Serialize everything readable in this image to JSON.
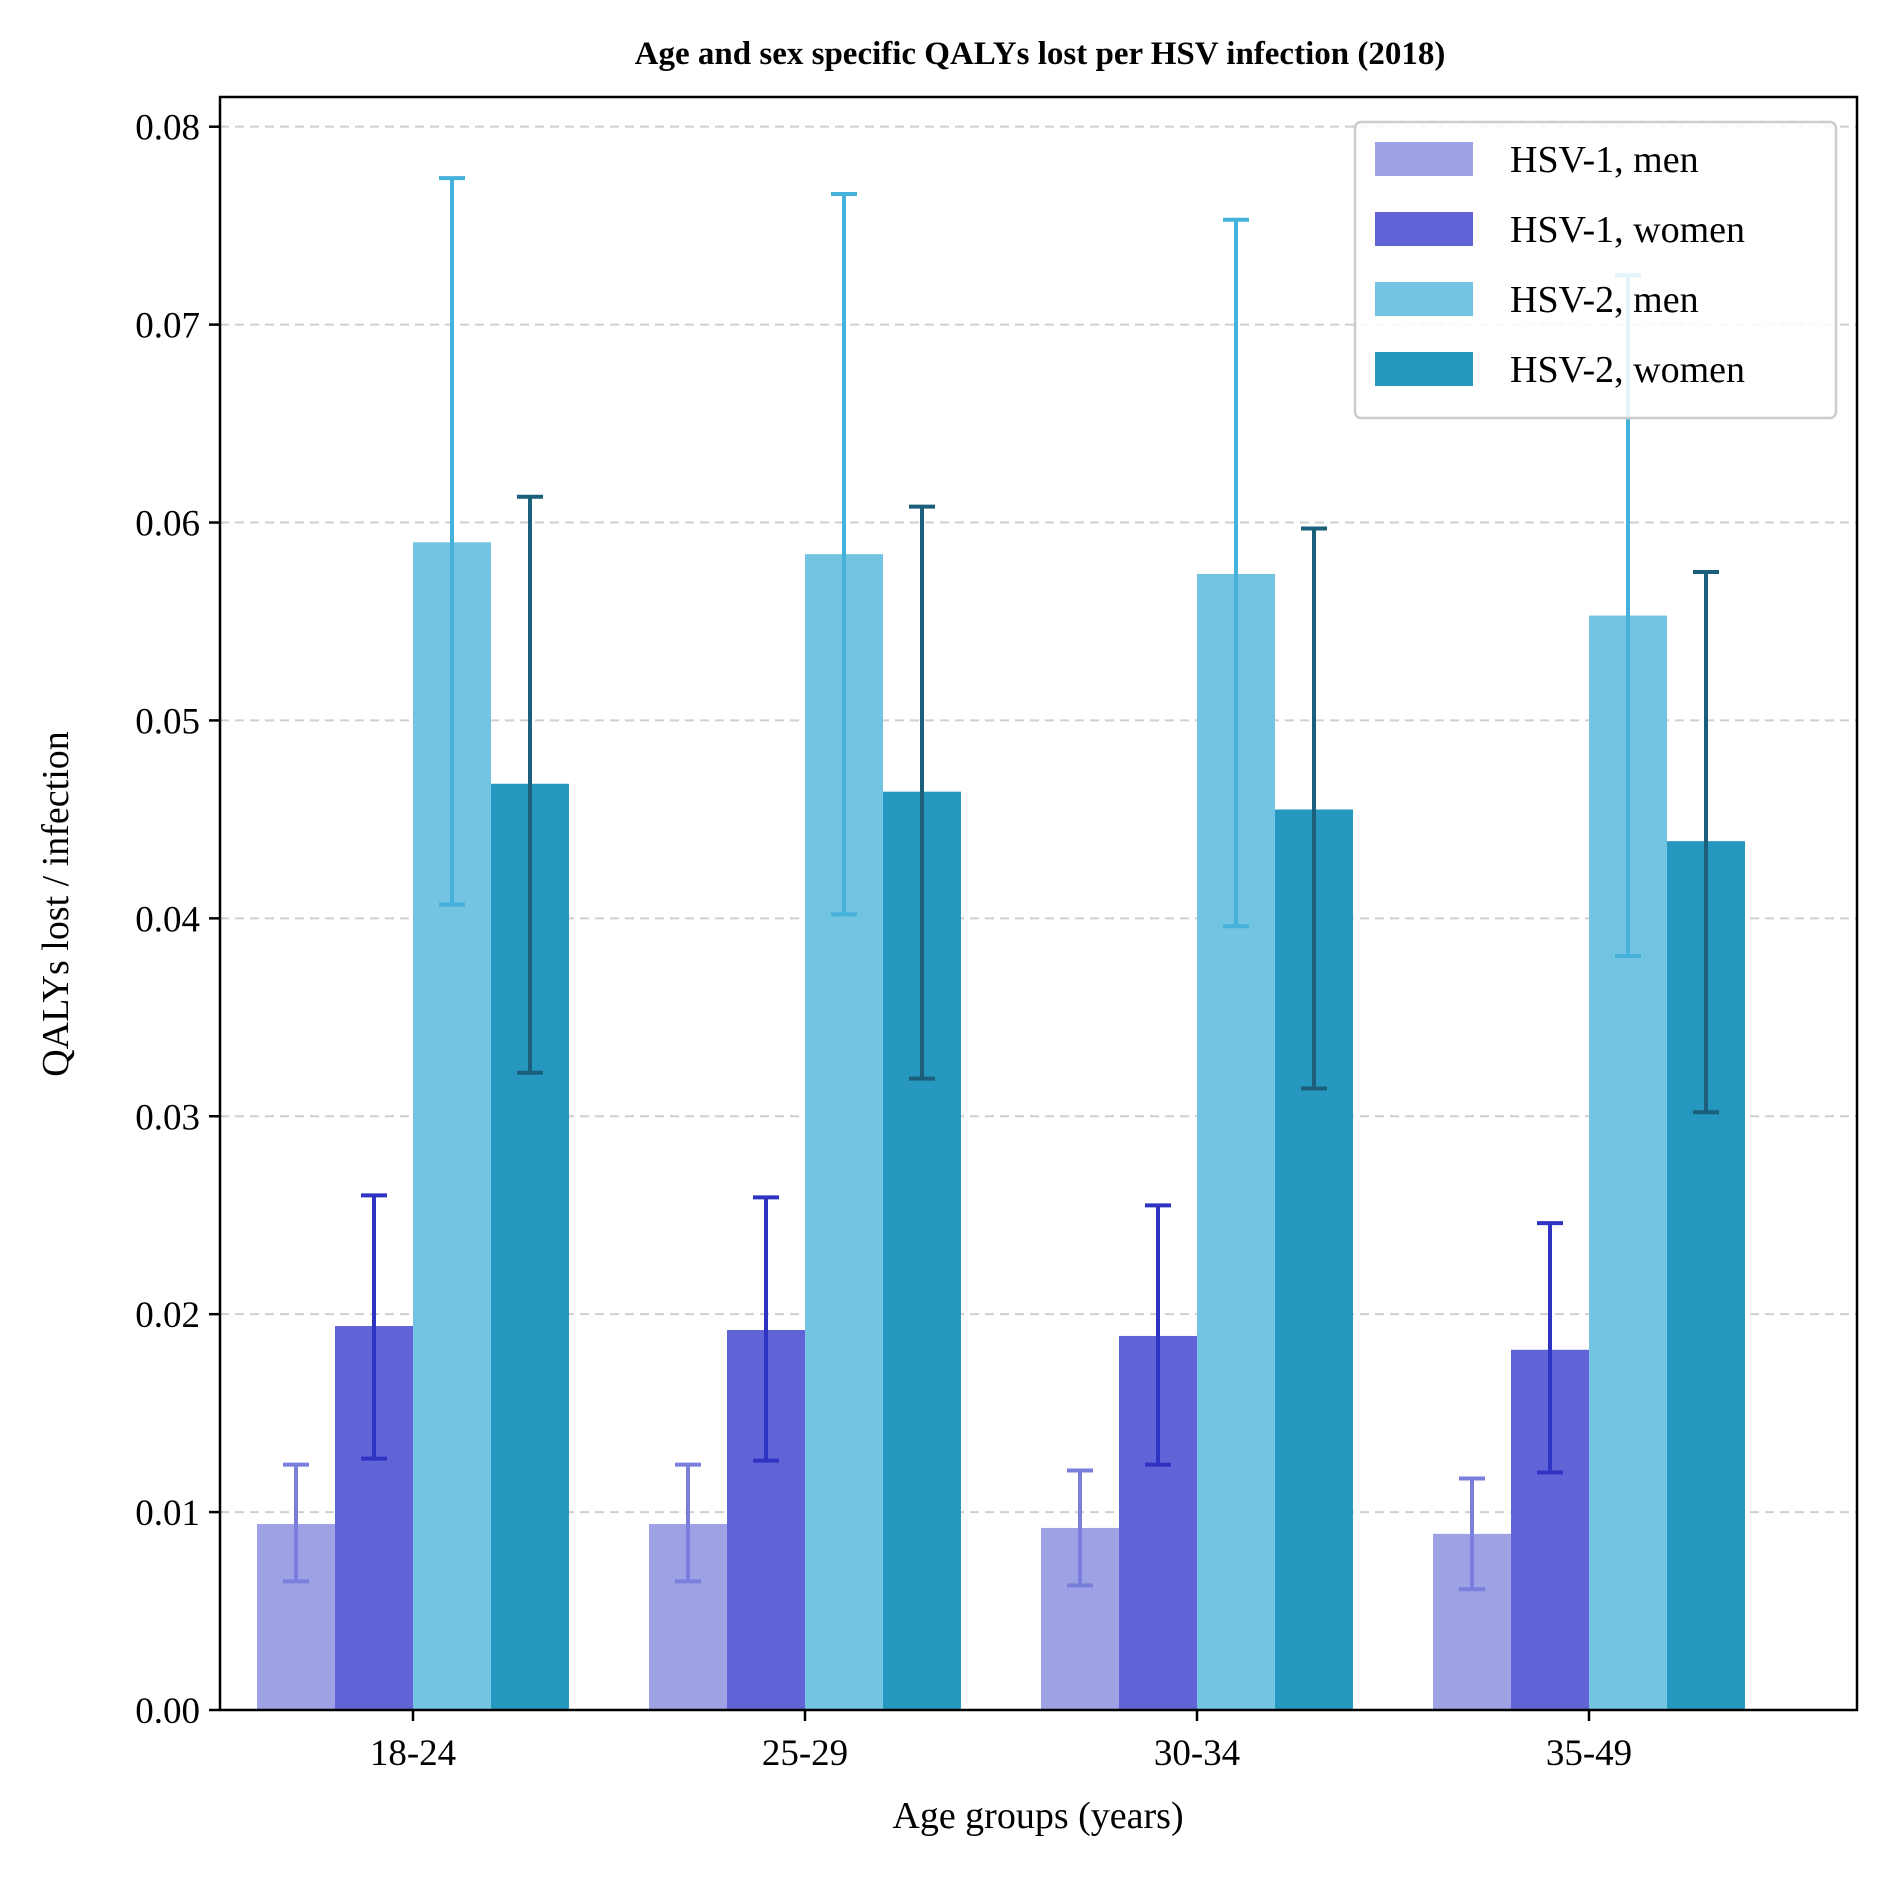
{
  "chart_data": {
    "type": "bar",
    "title": "Age and sex specific QALYs lost per HSV infection (2018)",
    "xlabel": "Age groups (years)",
    "ylabel": "QALYs lost / infection",
    "ylim": [
      0,
      0.0815
    ],
    "yticks": [
      0.0,
      0.01,
      0.02,
      0.03,
      0.04,
      0.05,
      0.06,
      0.07,
      0.08
    ],
    "ytick_labels": [
      "0.00",
      "0.01",
      "0.02",
      "0.03",
      "0.04",
      "0.05",
      "0.06",
      "0.07",
      "0.08"
    ],
    "grid": "horizontal dashed",
    "legend_position": "top-right",
    "categories": [
      "18-24",
      "25-29",
      "30-34",
      "35-49"
    ],
    "series": [
      {
        "name": "HSV-1, men",
        "color": "#9fa1e5",
        "error_color": "#7b7fdc",
        "values": [
          0.0094,
          0.0094,
          0.0092,
          0.0089
        ],
        "lower": [
          0.0065,
          0.0065,
          0.0063,
          0.0061
        ],
        "upper": [
          0.0124,
          0.0124,
          0.0121,
          0.0117
        ]
      },
      {
        "name": "HSV-1, women",
        "color": "#6064d6",
        "error_color": "#2f33c2",
        "values": [
          0.0194,
          0.0192,
          0.0189,
          0.0182
        ],
        "lower": [
          0.0127,
          0.0126,
          0.0124,
          0.012
        ],
        "upper": [
          0.026,
          0.0259,
          0.0255,
          0.0246
        ]
      },
      {
        "name": "HSV-2, men",
        "color": "#73c4e2",
        "error_color": "#45b2db",
        "values": [
          0.059,
          0.0584,
          0.0574,
          0.0553
        ],
        "lower": [
          0.0407,
          0.0402,
          0.0396,
          0.0381
        ],
        "upper": [
          0.0774,
          0.0766,
          0.0753,
          0.0725
        ]
      },
      {
        "name": "HSV-2, women",
        "color": "#2697bf",
        "error_color": "#1b5f7b",
        "values": [
          0.0468,
          0.0464,
          0.0455,
          0.0439
        ],
        "lower": [
          0.0322,
          0.0319,
          0.0314,
          0.0302
        ],
        "upper": [
          0.0613,
          0.0608,
          0.0597,
          0.0575
        ]
      }
    ]
  }
}
